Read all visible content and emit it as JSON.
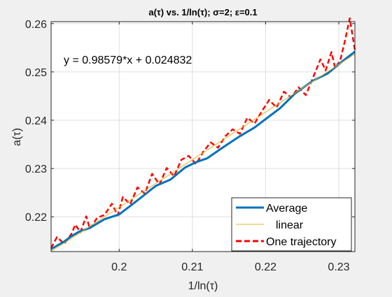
{
  "chart_data": {
    "type": "line",
    "title": "a(τ) vs. 1/ln(τ); σ=2; ε=0.1",
    "xlabel": "1/ln(τ)",
    "ylabel": "a(τ)",
    "xlim": [
      0.1907,
      0.2322
    ],
    "ylim": [
      0.2128,
      0.2604
    ],
    "x_ticks": [
      0.2,
      0.21,
      0.22,
      0.23
    ],
    "x_tick_labels": [
      "0.2",
      "0.21",
      "0.22",
      "0.23"
    ],
    "y_ticks": [
      0.22,
      0.23,
      0.24,
      0.25,
      0.26
    ],
    "y_tick_labels": [
      "0.22",
      "0.23",
      "0.24",
      "0.25",
      "0.26"
    ],
    "grid": true,
    "legend_position": "bottom-right",
    "annotation": "y = 0.98579*x + 0.024832",
    "fit": {
      "slope": 0.98579,
      "intercept": 0.024832
    },
    "series": [
      {
        "name": "Average",
        "color": "#0072BD",
        "style": "solid",
        "x": [
          0.1907,
          0.1925,
          0.1935,
          0.1945,
          0.196,
          0.198,
          0.2,
          0.2025,
          0.205,
          0.207,
          0.209,
          0.2105,
          0.212,
          0.214,
          0.2165,
          0.2185,
          0.2205,
          0.222,
          0.224,
          0.2265,
          0.2285,
          0.2305,
          0.2322
        ],
        "y": [
          0.2133,
          0.2149,
          0.216,
          0.2169,
          0.2177,
          0.2195,
          0.2205,
          0.2234,
          0.2264,
          0.2277,
          0.2302,
          0.2313,
          0.2321,
          0.2342,
          0.2367,
          0.2385,
          0.2408,
          0.2425,
          0.2455,
          0.2482,
          0.2497,
          0.2522,
          0.2542
        ]
      },
      {
        "name": "linear",
        "color": "#EDB120",
        "style": "solid",
        "x": [
          0.1907,
          0.2322
        ],
        "y": [
          0.2128,
          0.2537
        ]
      },
      {
        "name": "One trajectory",
        "color": "#FF0000",
        "style": "dashed",
        "x": [
          0.1907,
          0.1915,
          0.1925,
          0.1935,
          0.194,
          0.1947,
          0.1955,
          0.196,
          0.197,
          0.198,
          0.199,
          0.1998,
          0.2005,
          0.2015,
          0.2025,
          0.2035,
          0.2045,
          0.2055,
          0.2065,
          0.2075,
          0.2085,
          0.2095,
          0.2105,
          0.2115,
          0.2125,
          0.2135,
          0.2145,
          0.2155,
          0.2165,
          0.2175,
          0.2185,
          0.2195,
          0.2205,
          0.2215,
          0.2225,
          0.2235,
          0.2245,
          0.2255,
          0.2265,
          0.2275,
          0.2282,
          0.229,
          0.2295,
          0.2302,
          0.2308,
          0.2315,
          0.2322
        ],
        "y": [
          0.2135,
          0.2158,
          0.2144,
          0.2165,
          0.2184,
          0.2168,
          0.2201,
          0.2175,
          0.2198,
          0.2204,
          0.2227,
          0.2203,
          0.2241,
          0.2226,
          0.2261,
          0.2248,
          0.2289,
          0.2267,
          0.2301,
          0.2284,
          0.2318,
          0.2326,
          0.2309,
          0.2335,
          0.2354,
          0.2343,
          0.2367,
          0.2381,
          0.2372,
          0.2405,
          0.2393,
          0.2419,
          0.2442,
          0.2426,
          0.2459,
          0.2447,
          0.2468,
          0.2452,
          0.2489,
          0.2526,
          0.2503,
          0.2541,
          0.2508,
          0.2524,
          0.2562,
          0.2611,
          0.2545
        ]
      }
    ]
  }
}
